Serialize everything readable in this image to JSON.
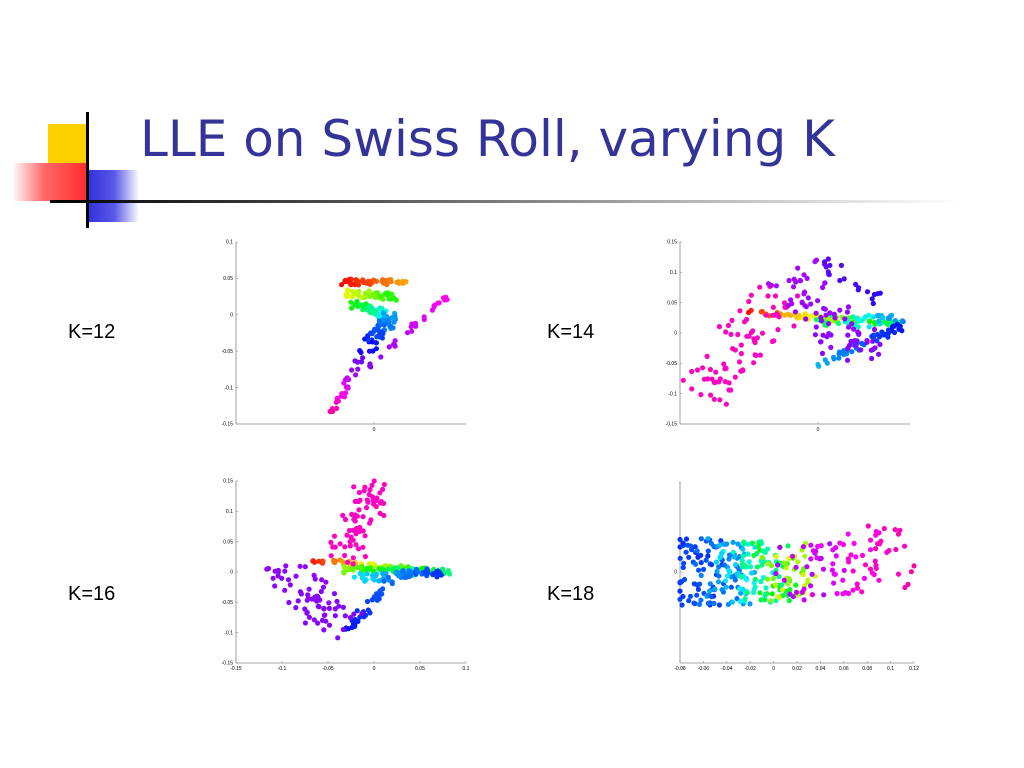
{
  "title": "LLE on Swiss Roll, varying K",
  "colors": {
    "title": "#333399",
    "deco_yellow": "#ffd000",
    "deco_blue": "#2e2edb",
    "deco_red": "#ff3a3a"
  },
  "chart_data": [
    {
      "type": "scatter",
      "label": "K=12",
      "xlim": [
        -0.15,
        0.1
      ],
      "ylim": [
        -0.15,
        0.1
      ],
      "xticks": [
        "0"
      ],
      "xtick_values": [
        0
      ],
      "yticks": [
        "0.1",
        "0.05",
        "0",
        "-0.05",
        "-0.1",
        "-0.15"
      ],
      "ytick_values": [
        0.1,
        0.05,
        0,
        -0.05,
        -0.1,
        -0.15
      ],
      "segments": [
        {
          "from": [
            -0.035,
            0.045
          ],
          "to": [
            0.035,
            0.045
          ],
          "n": 55,
          "c0": 0.0,
          "c1": 0.12,
          "spread": 0.004
        },
        {
          "from": [
            -0.03,
            0.03
          ],
          "to": [
            0.02,
            0.025
          ],
          "n": 45,
          "c0": 0.18,
          "c1": 0.35,
          "spread": 0.005
        },
        {
          "from": [
            -0.02,
            0.015
          ],
          "to": [
            0.01,
            0.0
          ],
          "n": 45,
          "c0": 0.35,
          "c1": 0.55,
          "spread": 0.006
        },
        {
          "from": [
            0.02,
            0.0
          ],
          "to": [
            -0.01,
            -0.05
          ],
          "n": 55,
          "c0": 0.6,
          "c1": 0.75,
          "spread": 0.008
        },
        {
          "from": [
            -0.015,
            -0.06
          ],
          "to": [
            -0.045,
            -0.135
          ],
          "n": 25,
          "c0": 0.8,
          "c1": 0.98,
          "spread": 0.004
        },
        {
          "from": [
            0.08,
            0.025
          ],
          "to": [
            -0.005,
            -0.07
          ],
          "n": 30,
          "c0": 0.92,
          "c1": 0.82,
          "spread": 0.003
        }
      ]
    },
    {
      "type": "scatter",
      "label": "K=14",
      "xlim": [
        -0.15,
        0.1
      ],
      "ylim": [
        -0.15,
        0.15
      ],
      "xticks": [
        "0"
      ],
      "xtick_values": [
        0
      ],
      "yticks": [
        "0.15",
        "0.1",
        "0.05",
        "0",
        "-0.05",
        "-0.1",
        "-0.15"
      ],
      "ytick_values": [
        0.15,
        0.1,
        0.05,
        0,
        -0.05,
        -0.1,
        -0.15
      ],
      "segments": [
        {
          "from": [
            -0.08,
            0.035
          ],
          "to": [
            0.09,
            0.015
          ],
          "n": 60,
          "c0": 0.0,
          "c1": 0.45,
          "spread": 0.004
        },
        {
          "from": [
            0.0,
            0.02
          ],
          "to": [
            0.09,
            0.02
          ],
          "n": 40,
          "c0": 0.4,
          "c1": 0.65,
          "spread": 0.01
        },
        {
          "from": [
            0.0,
            -0.05
          ],
          "to": [
            0.09,
            0.01
          ],
          "n": 45,
          "c0": 0.6,
          "c1": 0.72,
          "spread": 0.006
        },
        {
          "from": [
            -0.13,
            -0.1
          ],
          "to": [
            -0.04,
            0.06
          ],
          "n": 80,
          "c0": 0.95,
          "c1": 0.95,
          "spread": 0.03
        },
        {
          "from": [
            -0.03,
            0.1
          ],
          "to": [
            0.05,
            -0.04
          ],
          "n": 80,
          "c0": 0.85,
          "c1": 0.82,
          "spread": 0.03
        },
        {
          "from": [
            0.0,
            0.12
          ],
          "to": [
            0.07,
            0.05
          ],
          "n": 20,
          "c0": 0.8,
          "c1": 0.75,
          "spread": 0.01
        }
      ]
    },
    {
      "type": "scatter",
      "label": "K=16",
      "xlim": [
        -0.15,
        0.1
      ],
      "ylim": [
        -0.15,
        0.15
      ],
      "xticks": [
        "-0.15",
        "-0.1",
        "-0.05",
        "0",
        "0.05",
        "0.1"
      ],
      "xtick_values": [
        -0.15,
        -0.1,
        -0.05,
        0,
        0.05,
        0.1
      ],
      "yticks": [
        "0.15",
        "0.1",
        "0.05",
        "0",
        "-0.05",
        "-0.1",
        "-0.15"
      ],
      "ytick_values": [
        0.15,
        0.1,
        0.05,
        0,
        -0.05,
        -0.1,
        -0.15
      ],
      "segments": [
        {
          "from": [
            -0.07,
            0.02
          ],
          "to": [
            0.08,
            0.0
          ],
          "n": 60,
          "c0": 0.0,
          "c1": 0.45,
          "spread": 0.004
        },
        {
          "from": [
            -0.04,
            0.005
          ],
          "to": [
            0.05,
            0.0
          ],
          "n": 50,
          "c0": 0.25,
          "c1": 0.5,
          "spread": 0.006
        },
        {
          "from": [
            -0.02,
            -0.01
          ],
          "to": [
            0.07,
            0.0
          ],
          "n": 60,
          "c0": 0.55,
          "c1": 0.7,
          "spread": 0.008
        },
        {
          "from": [
            -0.03,
            -0.1
          ],
          "to": [
            0.02,
            -0.01
          ],
          "n": 35,
          "c0": 0.72,
          "c1": 0.65,
          "spread": 0.006
        },
        {
          "from": [
            -0.03,
            0.03
          ],
          "to": [
            0.0,
            0.14
          ],
          "n": 70,
          "c0": 0.95,
          "c1": 0.95,
          "spread": 0.02
        },
        {
          "from": [
            -0.1,
            0.0
          ],
          "to": [
            -0.03,
            -0.09
          ],
          "n": 70,
          "c0": 0.83,
          "c1": 0.82,
          "spread": 0.025
        }
      ]
    },
    {
      "type": "scatter",
      "label": "K=18",
      "xlim": [
        -0.08,
        0.12
      ],
      "ylim": [
        -0.06,
        0.06
      ],
      "xticks": [
        "-0.08",
        "-0.06",
        "-0.04",
        "-0.02",
        "0",
        "0.02",
        "0.04",
        "0.06",
        "0.08",
        "0.1",
        "0.12"
      ],
      "xtick_values": [
        -0.08,
        -0.06,
        -0.04,
        -0.02,
        0,
        0.02,
        0.04,
        0.06,
        0.08,
        0.1,
        0.12
      ],
      "yticks": [
        "0"
      ],
      "ytick_values": [
        0
      ],
      "segments": [
        {
          "from": [
            -0.072,
            0.0
          ],
          "to": [
            -0.055,
            0.0
          ],
          "n": 60,
          "c0": 0.7,
          "c1": 0.67,
          "spread": 0.022
        },
        {
          "from": [
            -0.055,
            0.0
          ],
          "to": [
            -0.035,
            0.0
          ],
          "n": 60,
          "c0": 0.67,
          "c1": 0.6,
          "spread": 0.022
        },
        {
          "from": [
            -0.035,
            0.0
          ],
          "to": [
            -0.01,
            0.0
          ],
          "n": 60,
          "c0": 0.6,
          "c1": 0.48,
          "spread": 0.02
        },
        {
          "from": [
            -0.01,
            0.0
          ],
          "to": [
            0.005,
            0.0
          ],
          "n": 50,
          "c0": 0.48,
          "c1": 0.36,
          "spread": 0.02
        },
        {
          "from": [
            0.005,
            0.0
          ],
          "to": [
            0.02,
            0.0
          ],
          "n": 40,
          "c0": 0.3,
          "c1": 0.2,
          "spread": 0.02
        },
        {
          "from": [
            0.02,
            0.0
          ],
          "to": [
            0.105,
            0.01
          ],
          "n": 90,
          "c0": 0.85,
          "c1": 0.97,
          "spread": 0.022
        }
      ]
    }
  ]
}
